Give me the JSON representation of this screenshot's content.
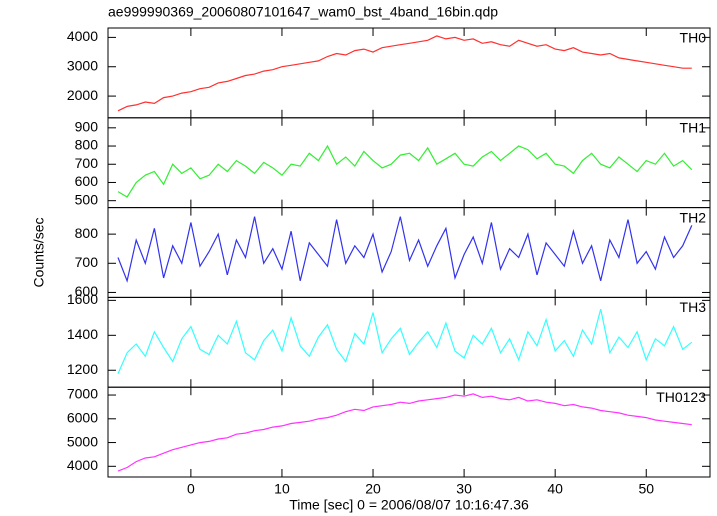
{
  "chart_data": [
    {
      "type": "line",
      "title": "ae999990369_20060807101647_wam0_bst_4band_16bin.qdp",
      "x": [
        -8,
        -7,
        -6,
        -5,
        -4,
        -3,
        -2,
        -1,
        0,
        1,
        2,
        3,
        4,
        5,
        6,
        7,
        8,
        9,
        10,
        11,
        12,
        13,
        14,
        15,
        16,
        17,
        18,
        19,
        20,
        21,
        22,
        23,
        24,
        25,
        26,
        27,
        28,
        29,
        30,
        31,
        32,
        33,
        34,
        35,
        36,
        37,
        38,
        39,
        40,
        41,
        42,
        43,
        44,
        45,
        46,
        47,
        48,
        49,
        50,
        51,
        52,
        53,
        54,
        55
      ],
      "series": [
        {
          "name": "TH0",
          "color": "#ff3030",
          "values": [
            1500,
            1650,
            1700,
            1800,
            1750,
            1950,
            2000,
            2100,
            2150,
            2250,
            2300,
            2450,
            2500,
            2600,
            2700,
            2750,
            2850,
            2900,
            3000,
            3050,
            3100,
            3150,
            3200,
            3350,
            3450,
            3400,
            3550,
            3600,
            3500,
            3650,
            3700,
            3750,
            3800,
            3850,
            3900,
            4050,
            3950,
            4000,
            3900,
            3950,
            3800,
            3850,
            3750,
            3700,
            3900,
            3800,
            3700,
            3750,
            3600,
            3550,
            3650,
            3500,
            3450,
            3400,
            3450,
            3300,
            3250,
            3200,
            3150,
            3100,
            3050,
            3000,
            2950,
            2950
          ]
        }
      ],
      "xlim": [
        -9.1,
        57
      ],
      "xticks": [
        0,
        10,
        20,
        30,
        40,
        50
      ],
      "ylim": [
        1260,
        4320
      ],
      "yticks": [
        2000,
        3000,
        4000
      ]
    },
    {
      "type": "line",
      "x": [
        -8,
        -7,
        -6,
        -5,
        -4,
        -3,
        -2,
        -1,
        0,
        1,
        2,
        3,
        4,
        5,
        6,
        7,
        8,
        9,
        10,
        11,
        12,
        13,
        14,
        15,
        16,
        17,
        18,
        19,
        20,
        21,
        22,
        23,
        24,
        25,
        26,
        27,
        28,
        29,
        30,
        31,
        32,
        33,
        34,
        35,
        36,
        37,
        38,
        39,
        40,
        41,
        42,
        43,
        44,
        45,
        46,
        47,
        48,
        49,
        50,
        51,
        52,
        53,
        54,
        55
      ],
      "series": [
        {
          "name": "TH1",
          "color": "#33ee33",
          "values": [
            550,
            520,
            600,
            640,
            660,
            590,
            700,
            650,
            680,
            620,
            640,
            700,
            660,
            720,
            690,
            650,
            710,
            680,
            640,
            700,
            690,
            760,
            720,
            800,
            700,
            740,
            690,
            770,
            720,
            680,
            700,
            750,
            760,
            720,
            790,
            700,
            730,
            760,
            700,
            690,
            740,
            770,
            720,
            760,
            800,
            780,
            730,
            760,
            700,
            690,
            650,
            720,
            760,
            700,
            680,
            740,
            700,
            660,
            720,
            700,
            760,
            690,
            720,
            670
          ]
        }
      ],
      "xlim": [
        -9.1,
        57
      ],
      "xticks": [
        0,
        10,
        20,
        30,
        40,
        50
      ],
      "ylim": [
        462,
        955
      ],
      "yticks": [
        500,
        600,
        700,
        800,
        900
      ]
    },
    {
      "type": "line",
      "ylabel": "Counts/sec",
      "x": [
        -8,
        -7,
        -6,
        -5,
        -4,
        -3,
        -2,
        -1,
        0,
        1,
        2,
        3,
        4,
        5,
        6,
        7,
        8,
        9,
        10,
        11,
        12,
        13,
        14,
        15,
        16,
        17,
        18,
        19,
        20,
        21,
        22,
        23,
        24,
        25,
        26,
        27,
        28,
        29,
        30,
        31,
        32,
        33,
        34,
        35,
        36,
        37,
        38,
        39,
        40,
        41,
        42,
        43,
        44,
        45,
        46,
        47,
        48,
        49,
        50,
        51,
        52,
        53,
        54,
        55
      ],
      "series": [
        {
          "name": "TH2",
          "color": "#3333ee",
          "values": [
            720,
            640,
            780,
            700,
            820,
            650,
            760,
            700,
            840,
            690,
            740,
            800,
            660,
            780,
            720,
            860,
            700,
            750,
            680,
            810,
            640,
            770,
            730,
            690,
            850,
            700,
            760,
            720,
            800,
            670,
            740,
            860,
            710,
            780,
            690,
            760,
            820,
            650,
            730,
            790,
            700,
            840,
            680,
            750,
            720,
            800,
            660,
            770,
            730,
            690,
            810,
            700,
            760,
            640,
            780,
            720,
            850,
            700,
            740,
            680,
            790,
            720,
            760,
            830
          ]
        }
      ],
      "xlim": [
        -9.1,
        57
      ],
      "xticks": [
        0,
        10,
        20,
        30,
        40,
        50
      ],
      "ylim": [
        583,
        891
      ],
      "yticks": [
        600,
        700,
        800
      ]
    },
    {
      "type": "line",
      "x": [
        -8,
        -7,
        -6,
        -5,
        -4,
        -3,
        -2,
        -1,
        0,
        1,
        2,
        3,
        4,
        5,
        6,
        7,
        8,
        9,
        10,
        11,
        12,
        13,
        14,
        15,
        16,
        17,
        18,
        19,
        20,
        21,
        22,
        23,
        24,
        25,
        26,
        27,
        28,
        29,
        30,
        31,
        32,
        33,
        34,
        35,
        36,
        37,
        38,
        39,
        40,
        41,
        42,
        43,
        44,
        45,
        46,
        47,
        48,
        49,
        50,
        51,
        52,
        53,
        54,
        55
      ],
      "series": [
        {
          "name": "TH3",
          "color": "#33ffff",
          "values": [
            1180,
            1300,
            1350,
            1280,
            1420,
            1330,
            1250,
            1380,
            1450,
            1320,
            1290,
            1400,
            1350,
            1480,
            1300,
            1260,
            1370,
            1430,
            1310,
            1500,
            1340,
            1280,
            1390,
            1460,
            1320,
            1250,
            1410,
            1350,
            1530,
            1300,
            1380,
            1440,
            1290,
            1360,
            1420,
            1330,
            1470,
            1310,
            1270,
            1400,
            1350,
            1440,
            1300,
            1380,
            1260,
            1420,
            1340,
            1490,
            1310,
            1370,
            1280,
            1430,
            1350,
            1550,
            1300,
            1390,
            1330,
            1420,
            1260,
            1380,
            1340,
            1450,
            1320,
            1360
          ]
        }
      ],
      "xlim": [
        -9.1,
        57
      ],
      "xticks": [
        0,
        10,
        20,
        30,
        40,
        50
      ],
      "ylim": [
        1103,
        1617
      ],
      "yticks": [
        1200,
        1400,
        1600
      ]
    },
    {
      "type": "line",
      "xlabel": "Time [sec] 0 = 2006/08/07 10:16:47.36",
      "x": [
        -8,
        -7,
        -6,
        -5,
        -4,
        -3,
        -2,
        -1,
        0,
        1,
        2,
        3,
        4,
        5,
        6,
        7,
        8,
        9,
        10,
        11,
        12,
        13,
        14,
        15,
        16,
        17,
        18,
        19,
        20,
        21,
        22,
        23,
        24,
        25,
        26,
        27,
        28,
        29,
        30,
        31,
        32,
        33,
        34,
        35,
        36,
        37,
        38,
        39,
        40,
        41,
        42,
        43,
        44,
        45,
        46,
        47,
        48,
        49,
        50,
        51,
        52,
        53,
        54,
        55
      ],
      "series": [
        {
          "name": "TH0123",
          "color": "#ff33ff",
          "values": [
            3800,
            3950,
            4200,
            4350,
            4400,
            4550,
            4700,
            4800,
            4900,
            5000,
            5050,
            5150,
            5200,
            5350,
            5400,
            5500,
            5550,
            5650,
            5700,
            5800,
            5850,
            5900,
            6000,
            6050,
            6150,
            6300,
            6400,
            6350,
            6500,
            6550,
            6600,
            6700,
            6650,
            6750,
            6800,
            6850,
            6900,
            7000,
            6950,
            7050,
            6900,
            6950,
            6850,
            6800,
            6900,
            6750,
            6800,
            6700,
            6650,
            6550,
            6600,
            6500,
            6450,
            6350,
            6300,
            6250,
            6150,
            6100,
            6050,
            5950,
            5900,
            5850,
            5800,
            5750
          ]
        }
      ],
      "xlim": [
        -9.1,
        57
      ],
      "xticks": [
        0,
        10,
        20,
        30,
        40,
        50
      ],
      "ylim": [
        3550,
        7330
      ],
      "yticks": [
        4000,
        5000,
        6000,
        7000
      ]
    }
  ]
}
